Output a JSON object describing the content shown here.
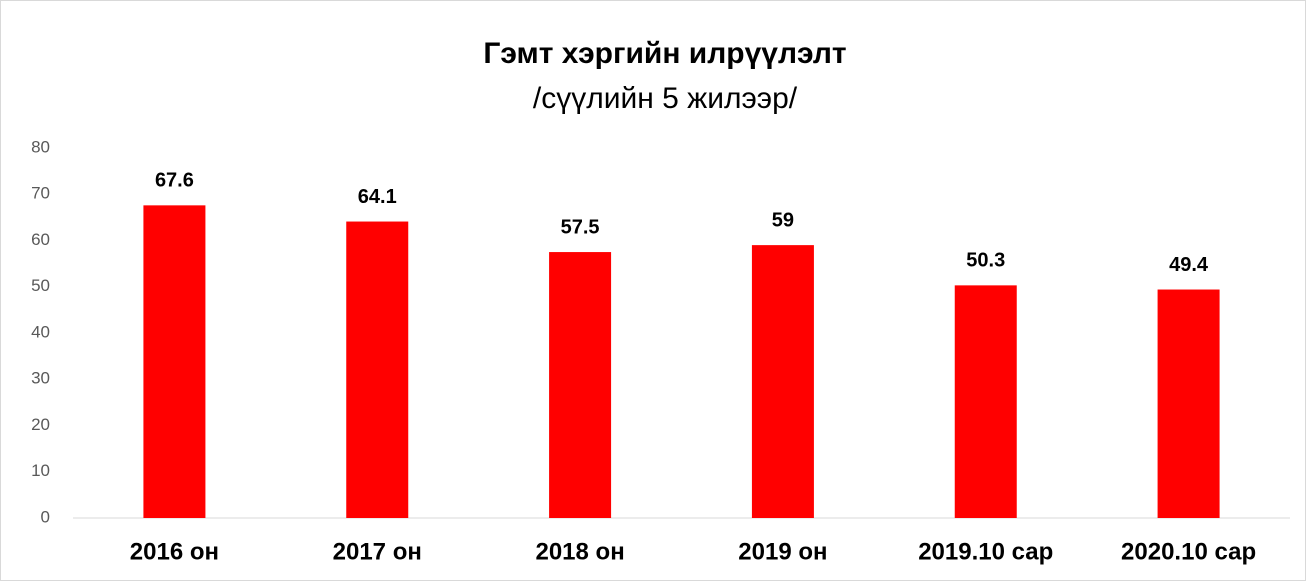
{
  "chart_data": {
    "type": "bar",
    "title": "Гэмт хэргийн илрүүлэлт",
    "subtitle": "/сүүлийн 5 жилээр/",
    "categories": [
      "2016 он",
      "2017 он",
      "2018 он",
      "2019 он",
      "2019.10 сар",
      "2020.10 сар"
    ],
    "values": [
      67.6,
      64.1,
      57.5,
      59,
      50.3,
      49.4
    ],
    "color": "#ff0000",
    "ylim": [
      0,
      80
    ],
    "yticks": [
      0,
      10,
      20,
      30,
      40,
      50,
      60,
      70,
      80
    ],
    "grid": false
  }
}
